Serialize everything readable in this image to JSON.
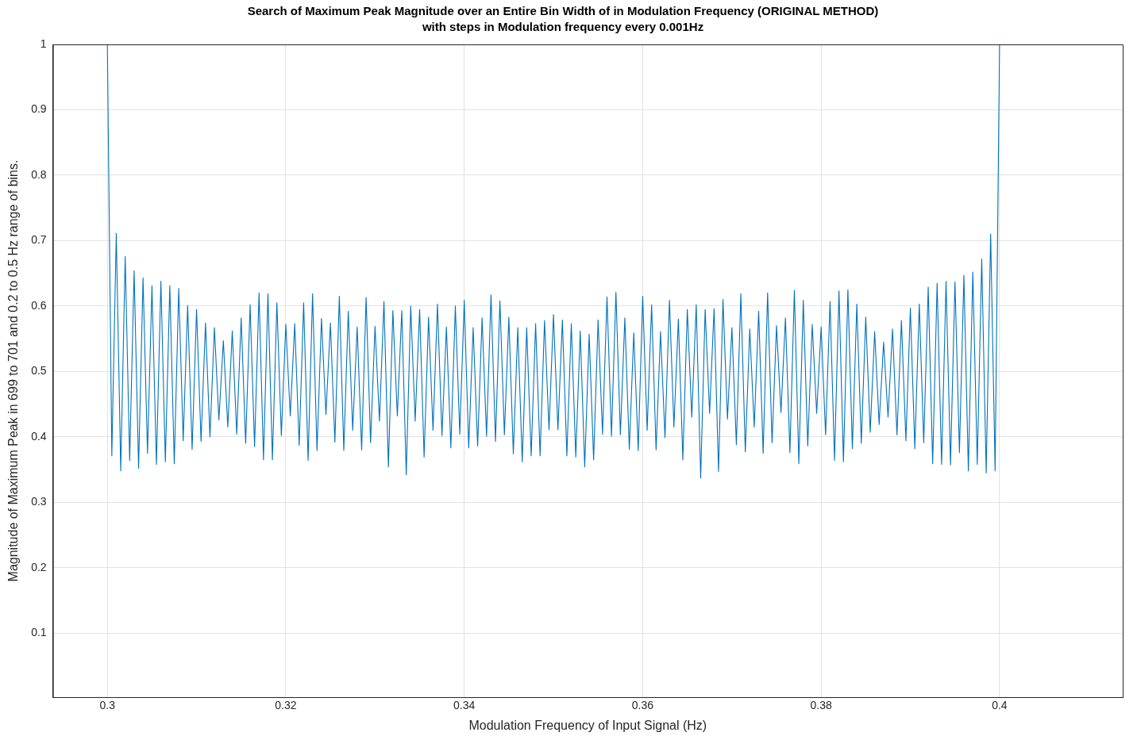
{
  "chart_data": {
    "type": "line",
    "title": "Search of Maximum Peak Magnitude over an Entire Bin Width of in Modulation Frequency (ORIGINAL METHOD)",
    "subtitle": "with steps in Modulation frequency every 0.001Hz",
    "xlabel": "Modulation Frequency of Input Signal (Hz)",
    "ylabel": "Magnitude of Maximum Peak in 699 to 701 and 0.2 to 0.5 Hz range of bins.",
    "x": [
      0.3,
      0.3005,
      0.301,
      0.3015,
      0.302,
      0.3025,
      0.303,
      0.3035,
      0.304,
      0.3045,
      0.305,
      0.3055,
      0.306,
      0.3065,
      0.307,
      0.3075,
      0.308,
      0.3085,
      0.309,
      0.3095,
      0.31,
      0.3105,
      0.311,
      0.3115,
      0.312,
      0.3125,
      0.313,
      0.3135,
      0.314,
      0.3145,
      0.315,
      0.3155,
      0.316,
      0.3165,
      0.317,
      0.3175,
      0.318,
      0.3185,
      0.319,
      0.3195,
      0.32,
      0.3205,
      0.321,
      0.3215,
      0.322,
      0.3225,
      0.323,
      0.3235,
      0.324,
      0.3245,
      0.325,
      0.3255,
      0.326,
      0.3265,
      0.327,
      0.3275,
      0.328,
      0.3285,
      0.329,
      0.3295,
      0.33,
      0.3305,
      0.331,
      0.3315,
      0.332,
      0.3325,
      0.333,
      0.3335,
      0.334,
      0.3345,
      0.335,
      0.3355,
      0.336,
      0.3365,
      0.337,
      0.3375,
      0.338,
      0.3385,
      0.339,
      0.3395,
      0.34,
      0.3405,
      0.341,
      0.3415,
      0.342,
      0.3425,
      0.343,
      0.3435,
      0.344,
      0.3445,
      0.345,
      0.3455,
      0.346,
      0.3465,
      0.347,
      0.3475,
      0.348,
      0.3485,
      0.349,
      0.3495,
      0.35,
      0.3505,
      0.351,
      0.3515,
      0.352,
      0.3525,
      0.353,
      0.3535,
      0.354,
      0.3545,
      0.355,
      0.3555,
      0.356,
      0.3565,
      0.357,
      0.3575,
      0.358,
      0.3585,
      0.359,
      0.3595,
      0.36,
      0.3605,
      0.361,
      0.3615,
      0.362,
      0.3625,
      0.363,
      0.3635,
      0.364,
      0.3645,
      0.365,
      0.3655,
      0.366,
      0.3665,
      0.367,
      0.3675,
      0.368,
      0.3685,
      0.369,
      0.3695,
      0.37,
      0.3705,
      0.371,
      0.3715,
      0.372,
      0.3725,
      0.373,
      0.3735,
      0.374,
      0.3745,
      0.375,
      0.3755,
      0.376,
      0.3765,
      0.377,
      0.3775,
      0.378,
      0.3785,
      0.379,
      0.3795,
      0.38,
      0.3805,
      0.381,
      0.3815,
      0.382,
      0.3825,
      0.383,
      0.3835,
      0.384,
      0.3845,
      0.385,
      0.3855,
      0.386,
      0.3865,
      0.387,
      0.3875,
      0.388,
      0.3885,
      0.389,
      0.3895,
      0.39,
      0.3905,
      0.391,
      0.3915,
      0.392,
      0.3925,
      0.393,
      0.3935,
      0.394,
      0.3945,
      0.395,
      0.3955,
      0.396,
      0.3965,
      0.397,
      0.3975,
      0.398,
      0.3985,
      0.399,
      0.3995,
      0.4
    ],
    "series": [
      {
        "color": "#0072bd",
        "values": [
          1,
          0.371,
          0.711,
          0.348,
          0.676,
          0.364,
          0.654,
          0.352,
          0.643,
          0.375,
          0.631,
          0.358,
          0.638,
          0.362,
          0.631,
          0.359,
          0.627,
          0.394,
          0.601,
          0.381,
          0.595,
          0.393,
          0.574,
          0.4,
          0.567,
          0.426,
          0.547,
          0.415,
          0.562,
          0.404,
          0.582,
          0.39,
          0.602,
          0.385,
          0.62,
          0.365,
          0.619,
          0.365,
          0.605,
          0.402,
          0.572,
          0.432,
          0.573,
          0.387,
          0.605,
          0.364,
          0.619,
          0.379,
          0.581,
          0.434,
          0.574,
          0.392,
          0.615,
          0.379,
          0.592,
          0.41,
          0.568,
          0.38,
          0.613,
          0.391,
          0.569,
          0.424,
          0.607,
          0.354,
          0.593,
          0.432,
          0.593,
          0.342,
          0.6,
          0.424,
          0.595,
          0.369,
          0.583,
          0.41,
          0.603,
          0.402,
          0.568,
          0.383,
          0.6,
          0.404,
          0.609,
          0.383,
          0.567,
          0.386,
          0.582,
          0.401,
          0.617,
          0.393,
          0.608,
          0.403,
          0.583,
          0.374,
          0.567,
          0.362,
          0.567,
          0.371,
          0.573,
          0.371,
          0.578,
          0.411,
          0.587,
          0.411,
          0.579,
          0.371,
          0.573,
          0.369,
          0.562,
          0.354,
          0.557,
          0.365,
          0.579,
          0.404,
          0.614,
          0.401,
          0.621,
          0.403,
          0.582,
          0.381,
          0.559,
          0.379,
          0.615,
          0.41,
          0.602,
          0.38,
          0.561,
          0.399,
          0.609,
          0.415,
          0.58,
          0.365,
          0.595,
          0.43,
          0.602,
          0.337,
          0.595,
          0.436,
          0.596,
          0.347,
          0.61,
          0.427,
          0.567,
          0.388,
          0.619,
          0.377,
          0.565,
          0.415,
          0.592,
          0.375,
          0.62,
          0.391,
          0.57,
          0.437,
          0.582,
          0.376,
          0.624,
          0.359,
          0.609,
          0.386,
          0.572,
          0.436,
          0.568,
          0.403,
          0.607,
          0.364,
          0.623,
          0.362,
          0.625,
          0.382,
          0.603,
          0.39,
          0.583,
          0.407,
          0.561,
          0.419,
          0.545,
          0.43,
          0.565,
          0.403,
          0.578,
          0.394,
          0.597,
          0.382,
          0.603,
          0.391,
          0.629,
          0.359,
          0.635,
          0.358,
          0.638,
          0.357,
          0.637,
          0.376,
          0.647,
          0.348,
          0.652,
          0.358,
          0.672,
          0.345,
          0.71,
          0.348,
          1
        ]
      }
    ],
    "xlim": [
      0.2939,
      0.4138
    ],
    "xticks": [
      0.3,
      0.32,
      0.34,
      0.36,
      0.38,
      0.4
    ],
    "ylim": [
      0.002,
      1
    ],
    "yticks": [
      0.1,
      0.2,
      0.3,
      0.4,
      0.5,
      0.6,
      0.7,
      0.8,
      0.9,
      1
    ],
    "grid": true,
    "legend": false,
    "marker": "none",
    "line_style": "solid"
  }
}
